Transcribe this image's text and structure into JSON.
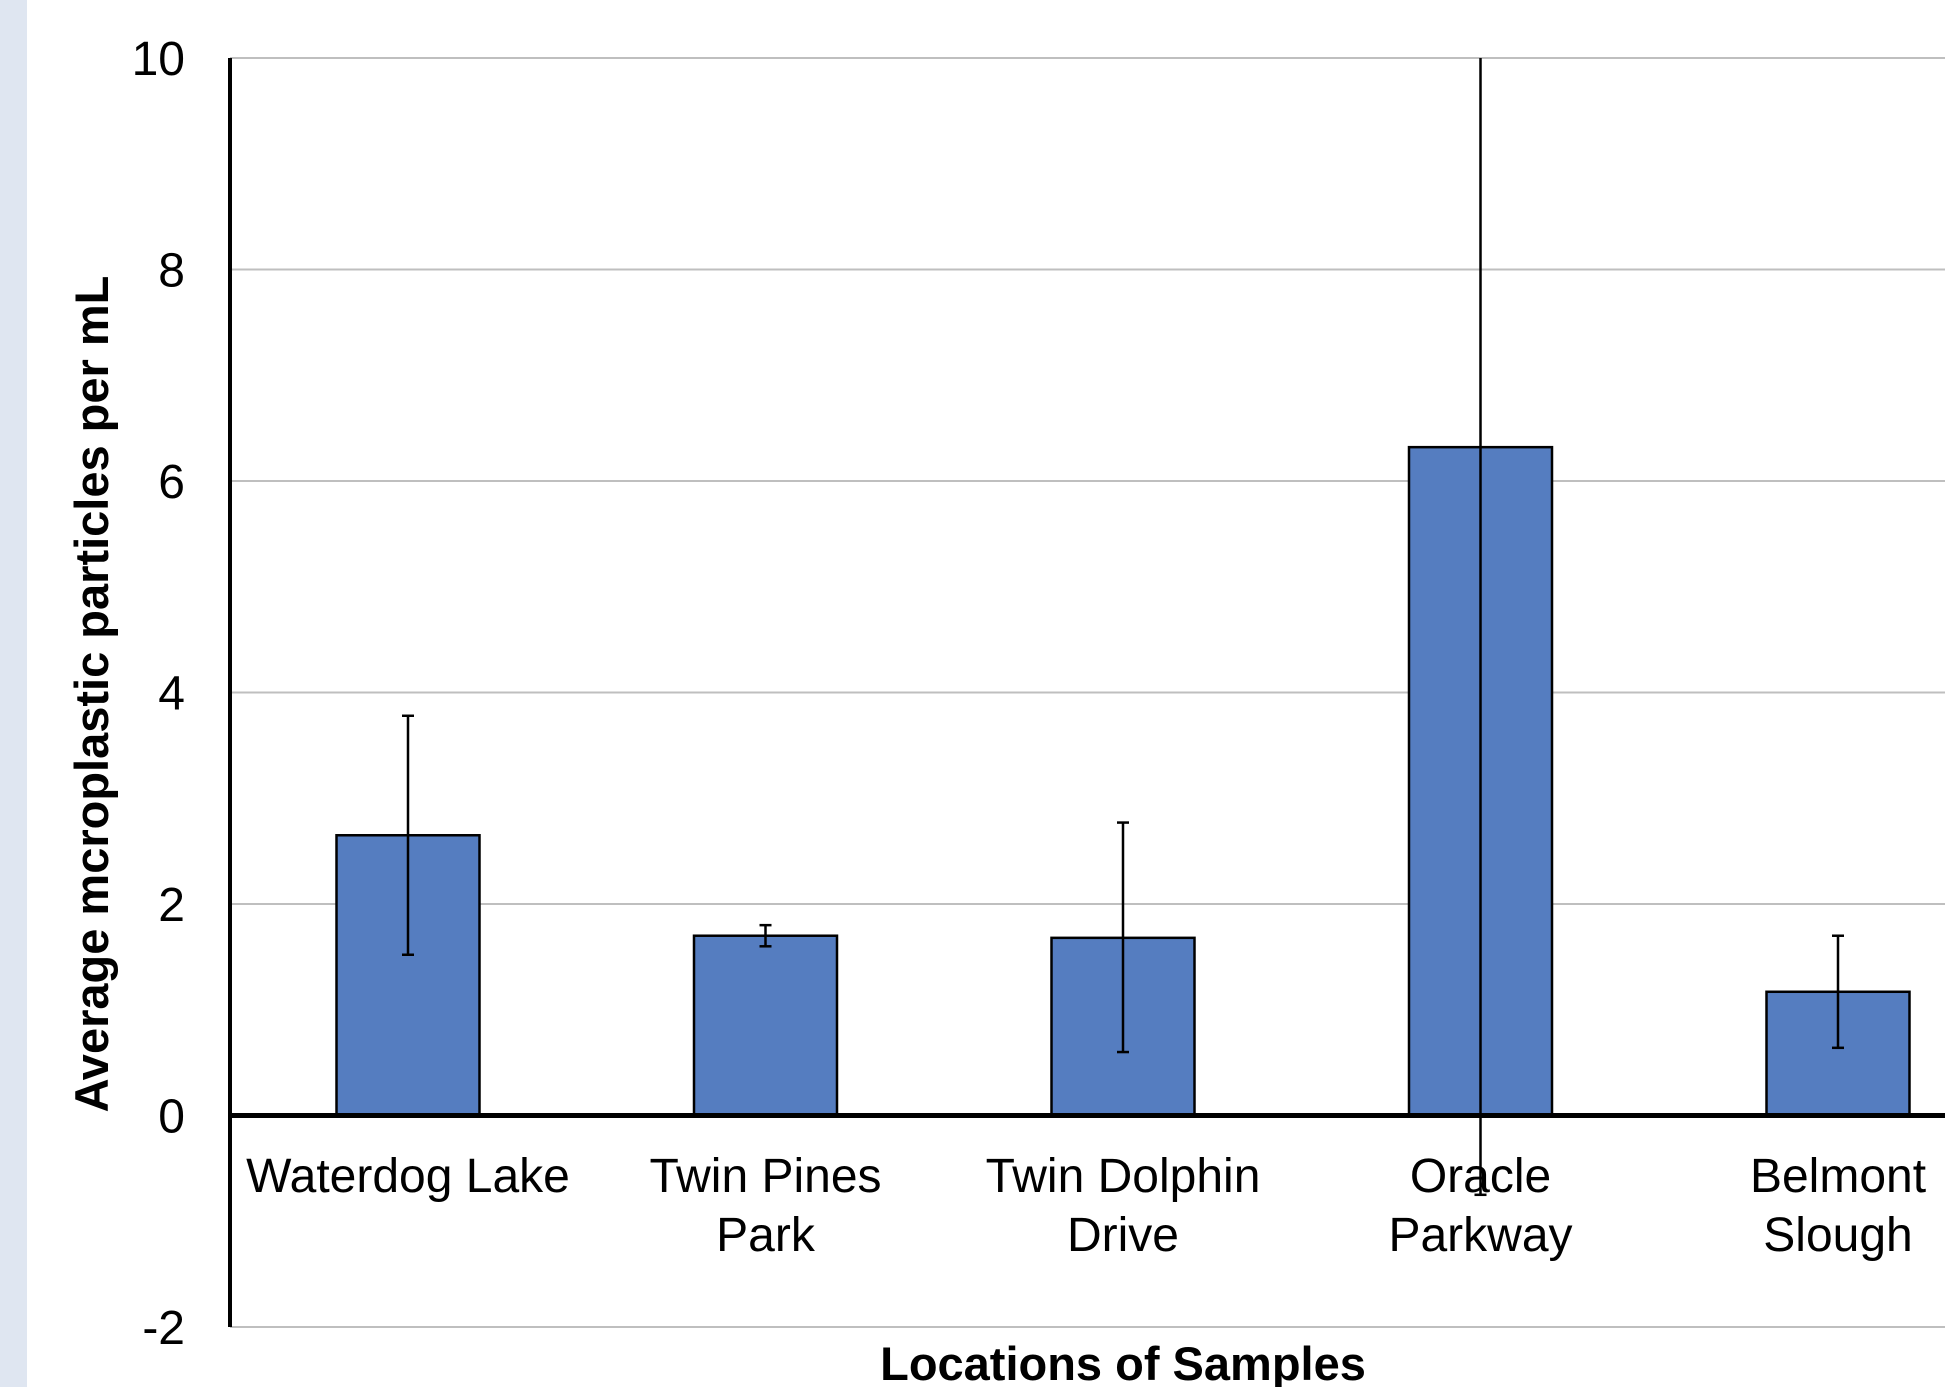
{
  "chart_data": {
    "type": "bar",
    "categories": [
      [
        "Waterdog Lake"
      ],
      [
        "Twin Pines",
        "Park"
      ],
      [
        "Twin Dolphin",
        "Drive"
      ],
      [
        "Oracle",
        "Parkway"
      ],
      [
        "Belmont",
        "Slough"
      ]
    ],
    "values": [
      2.65,
      1.7,
      1.68,
      6.32,
      1.17
    ],
    "error_low": [
      1.52,
      1.6,
      0.6,
      -0.75,
      0.64
    ],
    "error_high": [
      3.78,
      1.8,
      2.77,
      10.0,
      1.7
    ],
    "xlabel": "Locations of Samples",
    "ylabel": "Average mcroplastic particles per mL",
    "ylim": [
      -2,
      10
    ],
    "yticks": [
      -2,
      0,
      2,
      4,
      6,
      8,
      10
    ],
    "grid": true,
    "colors": {
      "bar": "#557dc0",
      "bar_edge": "#000000",
      "grid": "#bfbfbf",
      "axis": "#000000",
      "left_strip": "#dfe6f1"
    }
  }
}
